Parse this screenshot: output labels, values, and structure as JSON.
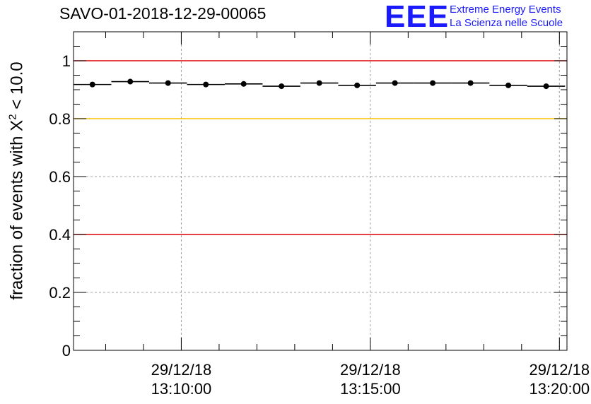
{
  "header": {
    "title": "SAVO-01-2018-12-29-00065",
    "logo_mark": "EEE",
    "logo_line1": "Extreme Energy Events",
    "logo_line2": "La Scienza nelle Scuole"
  },
  "chart_data": {
    "type": "scatter",
    "title": "SAVO-01-2018-12-29-00065",
    "ylabel_prefix": "fraction of events with X",
    "ylabel_sup": "2",
    "ylabel_suffix": " < 10.0",
    "xlabel": "",
    "ylim": [
      0,
      1.1
    ],
    "xlim_minutes": [
      7.15,
      20.2
    ],
    "yticks": [
      {
        "v": 0,
        "label": "0"
      },
      {
        "v": 0.2,
        "label": "0.2"
      },
      {
        "v": 0.4,
        "label": "0.4"
      },
      {
        "v": 0.6,
        "label": "0.6"
      },
      {
        "v": 0.8,
        "label": "0.8"
      },
      {
        "v": 1,
        "label": "1"
      }
    ],
    "xticks": [
      {
        "t": 10,
        "date": "29/12/18",
        "time": "13:10:00"
      },
      {
        "t": 15,
        "date": "29/12/18",
        "time": "13:15:00"
      },
      {
        "t": 20,
        "date": "29/12/18",
        "time": "13:20:00"
      }
    ],
    "reference_lines": [
      {
        "y": 1.0,
        "color": "#e00000"
      },
      {
        "y": 0.8,
        "color": "#f5c000"
      },
      {
        "y": 0.4,
        "color": "#e00000"
      }
    ],
    "grid": true,
    "bin_width_minutes": 1.0,
    "points": [
      {
        "t": 7.65,
        "y": 0.918
      },
      {
        "t": 8.65,
        "y": 0.928
      },
      {
        "t": 9.65,
        "y": 0.923
      },
      {
        "t": 10.65,
        "y": 0.918
      },
      {
        "t": 11.65,
        "y": 0.92
      },
      {
        "t": 12.65,
        "y": 0.912
      },
      {
        "t": 13.65,
        "y": 0.923
      },
      {
        "t": 14.65,
        "y": 0.915
      },
      {
        "t": 15.65,
        "y": 0.923
      },
      {
        "t": 16.65,
        "y": 0.923
      },
      {
        "t": 17.65,
        "y": 0.923
      },
      {
        "t": 18.65,
        "y": 0.915
      },
      {
        "t": 19.65,
        "y": 0.912
      }
    ],
    "colors": {
      "points": "#000000",
      "grid": "#a0a0a0"
    }
  }
}
